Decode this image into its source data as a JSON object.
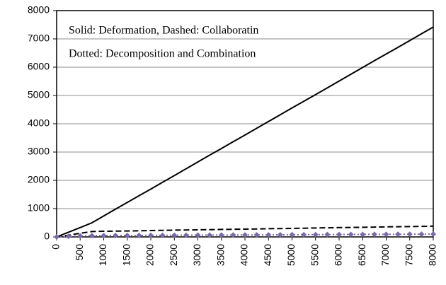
{
  "chart_data": {
    "type": "line",
    "annotations": [
      "Solid: Deformation, Dashed: Collaboratin",
      "Dotted: Decomposition and Combination"
    ],
    "x": [
      0,
      250,
      500,
      750,
      1000,
      1250,
      1500,
      1750,
      2000,
      2250,
      2500,
      2750,
      3000,
      3250,
      3500,
      3750,
      4000,
      4250,
      4500,
      4750,
      5000,
      5250,
      5500,
      5750,
      6000,
      6250,
      6500,
      6750,
      7000,
      7250,
      7500,
      7750,
      8000
    ],
    "series": [
      {
        "style": "solid",
        "color": "#000000",
        "values": [
          0,
          165,
          330,
          500,
          740,
          980,
          1220,
          1455,
          1690,
          1930,
          2170,
          2410,
          2650,
          2890,
          3125,
          3365,
          3600,
          3840,
          4080,
          4320,
          4560,
          4795,
          5030,
          5270,
          5510,
          5750,
          5990,
          6230,
          6465,
          6700,
          6940,
          7180,
          7420
        ]
      },
      {
        "style": "dashed",
        "color": "#000000",
        "values": [
          0,
          60,
          130,
          190,
          200,
          205,
          210,
          218,
          225,
          232,
          240,
          245,
          250,
          258,
          265,
          270,
          275,
          282,
          290,
          295,
          300,
          308,
          315,
          322,
          330,
          335,
          340,
          348,
          355,
          360,
          365,
          372,
          380
        ]
      },
      {
        "style": "dotted",
        "color": "#7b6aa8",
        "values": [
          0,
          20,
          35,
          45,
          47,
          49,
          51,
          53,
          55,
          57,
          59,
          60,
          62,
          64,
          66,
          68,
          70,
          71,
          73,
          75,
          77,
          79,
          81,
          83,
          85,
          87,
          89,
          91,
          92,
          94,
          96,
          98,
          100
        ]
      }
    ],
    "xlim": [
      0,
      8000
    ],
    "xticks": [
      0,
      500,
      1000,
      1500,
      2000,
      2500,
      3000,
      3500,
      4000,
      4500,
      5000,
      5500,
      6000,
      6500,
      7000,
      7500,
      8000
    ],
    "ylim": [
      0,
      8000
    ],
    "yticks": [
      0,
      1000,
      2000,
      3000,
      4000,
      5000,
      6000,
      7000,
      8000
    ],
    "grid": true
  }
}
